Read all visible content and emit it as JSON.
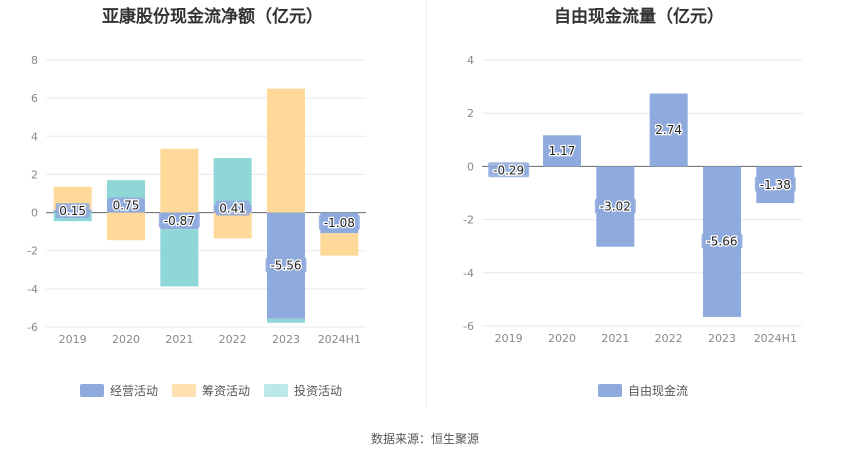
{
  "chart_data": [
    {
      "type": "bar",
      "stacked": true,
      "title": "亚康股份现金流净额（亿元）",
      "categories": [
        "2019",
        "2020",
        "2021",
        "2022",
        "2023",
        "2024H1"
      ],
      "ylim": [
        -6,
        8
      ],
      "yticks": [
        -6,
        -4,
        -2,
        0,
        2,
        4,
        6,
        8
      ],
      "grid": true,
      "legend_position": "bottom",
      "series": [
        {
          "name": "经营活动",
          "color": "#8faadc",
          "values": [
            0.15,
            0.75,
            -0.87,
            0.41,
            -5.56,
            -1.08
          ],
          "labels": [
            "0.15",
            "0.75",
            "-0.87",
            "0.41",
            "-5.56",
            "-1.08"
          ]
        },
        {
          "name": "筹资活动",
          "color": "#ffd99a",
          "values": [
            1.2,
            -1.45,
            3.35,
            -1.35,
            6.5,
            -1.18
          ]
        },
        {
          "name": "投资活动",
          "color": "#8fd7d7",
          "values": [
            -0.45,
            0.95,
            -3.0,
            2.45,
            -0.22,
            0.0
          ]
        }
      ]
    },
    {
      "type": "bar",
      "title": "自由现金流量（亿元）",
      "categories": [
        "2019",
        "2020",
        "2021",
        "2022",
        "2023",
        "2024H1"
      ],
      "ylim": [
        -6,
        4
      ],
      "yticks": [
        -6,
        -4,
        -2,
        0,
        2,
        4
      ],
      "grid": true,
      "legend_position": "bottom",
      "series": [
        {
          "name": "自由现金流",
          "color": "#8faadc",
          "values": [
            -0.29,
            1.17,
            -3.02,
            2.74,
            -5.66,
            -1.38
          ],
          "labels": [
            "-0.29",
            "1.17",
            "-3.02",
            "2.74",
            "-5.66",
            "-1.38"
          ]
        }
      ]
    }
  ],
  "source_text": "数据来源：恒生聚源"
}
